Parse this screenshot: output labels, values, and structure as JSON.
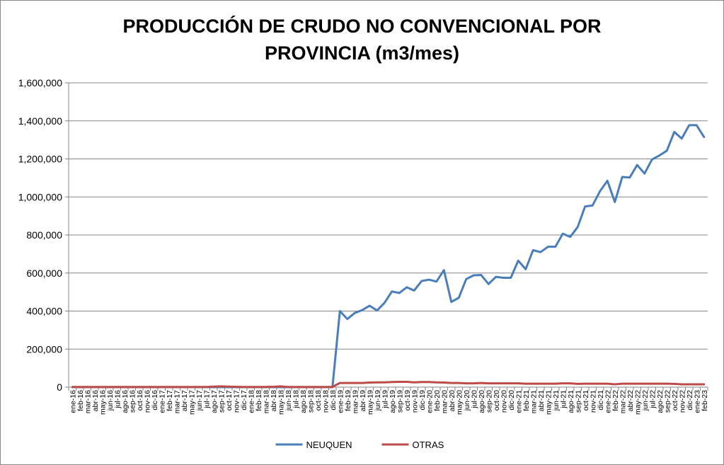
{
  "chart_data": {
    "type": "line",
    "title_lines": [
      "PRODUCCIÓN DE CRUDO NO CONVENCIONAL POR",
      "PROVINCIA (m3/mes)"
    ],
    "xlabel": "",
    "ylabel": "",
    "ylim": [
      0,
      1600000
    ],
    "yticks": [
      0,
      200000,
      400000,
      600000,
      800000,
      1000000,
      1200000,
      1400000,
      1600000
    ],
    "ytick_labels": [
      "0",
      "200,000",
      "400,000",
      "600,000",
      "800,000",
      "1,000,000",
      "1,200,000",
      "1,400,000",
      "1,600,000"
    ],
    "grid": true,
    "legend_position": "bottom",
    "categories": [
      "ene-16",
      "feb-16",
      "mar-16",
      "abr-16",
      "may-16",
      "jun-16",
      "jul-16",
      "ago-16",
      "sep-16",
      "oct-16",
      "nov-16",
      "dic-16",
      "ene-17",
      "feb-17",
      "mar-17",
      "abr-17",
      "may-17",
      "jun-17",
      "jul-17",
      "ago-17",
      "sep-17",
      "oct-17",
      "nov-17",
      "dic-17",
      "ene-18",
      "feb-18",
      "mar-18",
      "abr-18",
      "may-18",
      "jun-18",
      "jul-18",
      "ago-18",
      "sep-18",
      "oct-18",
      "nov-18",
      "dic-18",
      "ene-19",
      "feb-19",
      "mar-19",
      "abr-19",
      "may-19",
      "jun-19",
      "jul-19",
      "ago-19",
      "sep-19",
      "oct-19",
      "nov-19",
      "dic-19",
      "ene-20",
      "feb-20",
      "mar-20",
      "abr-20",
      "may-20",
      "jun-20",
      "jul-20",
      "ago-20",
      "sep-20",
      "oct-20",
      "nov-20",
      "dic-20",
      "ene-21",
      "feb-21",
      "mar-21",
      "abr-21",
      "may-21",
      "jun-21",
      "jul-21",
      "ago-21",
      "sep-21",
      "oct-21",
      "nov-21",
      "dic-21",
      "ene-22",
      "feb-22",
      "mar-22",
      "abr-22",
      "may-22",
      "jun-22",
      "jul-22",
      "ago-22",
      "sep-22",
      "oct-22",
      "nov-22",
      "dic-22",
      "ene-23",
      "feb-23"
    ],
    "series": [
      {
        "name": "NEUQUEN",
        "color": "#4a7ebb",
        "values": [
          0,
          0,
          0,
          0,
          0,
          0,
          0,
          0,
          0,
          0,
          0,
          0,
          0,
          0,
          0,
          0,
          0,
          0,
          0,
          0,
          0,
          0,
          0,
          0,
          0,
          0,
          0,
          0,
          0,
          0,
          0,
          0,
          0,
          0,
          0,
          0,
          400000,
          358000,
          390000,
          405000,
          428000,
          403000,
          443000,
          503000,
          495000,
          525000,
          508000,
          558000,
          565000,
          555000,
          615000,
          448000,
          470000,
          568000,
          588000,
          590000,
          542000,
          580000,
          575000,
          575000,
          665000,
          620000,
          720000,
          710000,
          738000,
          738000,
          807000,
          790000,
          842000,
          950000,
          955000,
          1030000,
          1085000,
          973000,
          1105000,
          1102000,
          1168000,
          1123000,
          1197000,
          1218000,
          1243000,
          1342000,
          1307000,
          1377000,
          1377000,
          1315000
        ]
      },
      {
        "name": "OTRAS",
        "color": "#be4b48",
        "values": [
          1000,
          1000,
          1000,
          1000,
          1000,
          1000,
          1000,
          1000,
          1000,
          1000,
          1000,
          1000,
          1000,
          1000,
          1000,
          1000,
          1000,
          1000,
          1000,
          3000,
          4000,
          3000,
          2000,
          1000,
          1000,
          1000,
          1000,
          2000,
          4000,
          1000,
          1000,
          1000,
          1000,
          1000,
          1000,
          1000,
          22000,
          22000,
          22000,
          22000,
          24000,
          25000,
          25000,
          27000,
          28000,
          28000,
          25000,
          27000,
          27000,
          25000,
          24000,
          22000,
          22000,
          20000,
          20000,
          22000,
          20000,
          20000,
          20000,
          20000,
          20000,
          18000,
          18000,
          18000,
          18000,
          18000,
          20000,
          20000,
          17000,
          18000,
          18000,
          18000,
          18000,
          15000,
          18000,
          18000,
          18000,
          18000,
          18000,
          18000,
          18000,
          17000,
          15000,
          15000,
          15000,
          15000
        ]
      }
    ]
  }
}
